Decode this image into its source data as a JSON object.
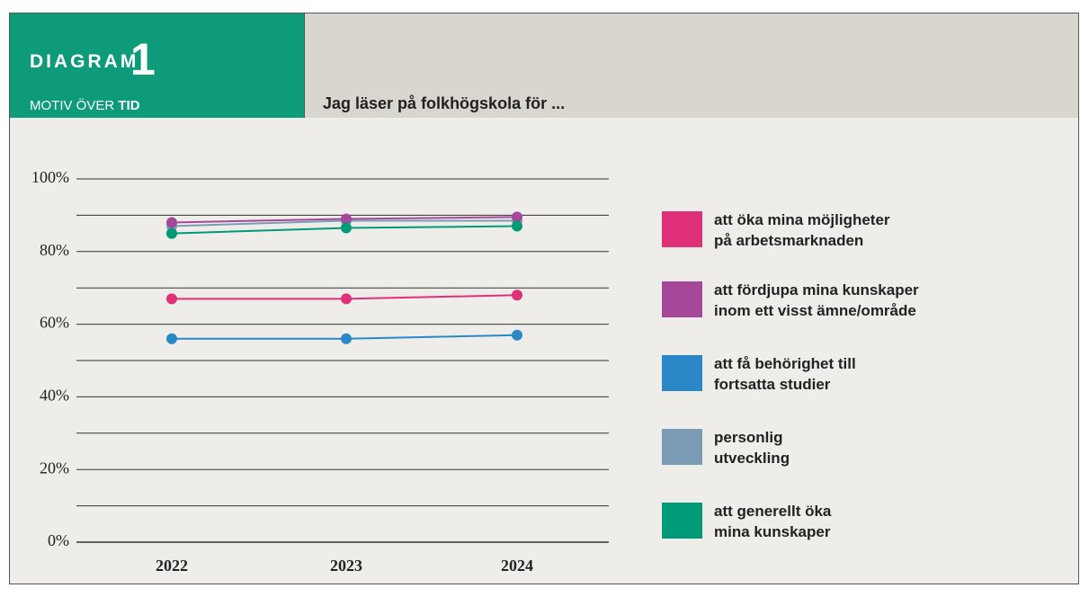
{
  "header": {
    "label": "DIAGRAM",
    "number": "1",
    "subtitle_prefix": "MOTIV ÖVER",
    "subtitle_emphasis": "TID"
  },
  "chart_data": {
    "type": "line",
    "title": "Jag läser på folkhögskola för ...",
    "categories": [
      "2022",
      "2023",
      "2024"
    ],
    "series": [
      {
        "name": "att öka mina möjligheter\npå arbetsmarknaden",
        "color": "#e0307a",
        "values": [
          67,
          67,
          68
        ]
      },
      {
        "name": "att fördjupa mina kunskaper\ninom ett visst ämne/område",
        "color": "#a5489a",
        "values": [
          88,
          89,
          89.5
        ]
      },
      {
        "name": "att få behörighet till\nfortsatta studier",
        "color": "#2b88c8",
        "values": [
          56,
          56,
          57
        ]
      },
      {
        "name": "personlig\nutveckling",
        "color": "#7a9db5",
        "values": [
          87,
          88.5,
          88.5
        ]
      },
      {
        "name": "att generellt öka\nmina kunskaper",
        "color": "#009a78",
        "values": [
          85,
          86.5,
          87
        ]
      }
    ],
    "ylim": [
      0,
      100
    ],
    "yticks": [
      {
        "value": 0,
        "label": "0%"
      },
      {
        "value": 20,
        "label": "20%"
      },
      {
        "value": 40,
        "label": "40%"
      },
      {
        "value": 60,
        "label": "60%"
      },
      {
        "value": 80,
        "label": "80%"
      },
      {
        "value": 100,
        "label": "100%"
      }
    ],
    "minor_yticks": [
      10,
      30,
      50,
      70,
      90
    ],
    "grid": true
  }
}
